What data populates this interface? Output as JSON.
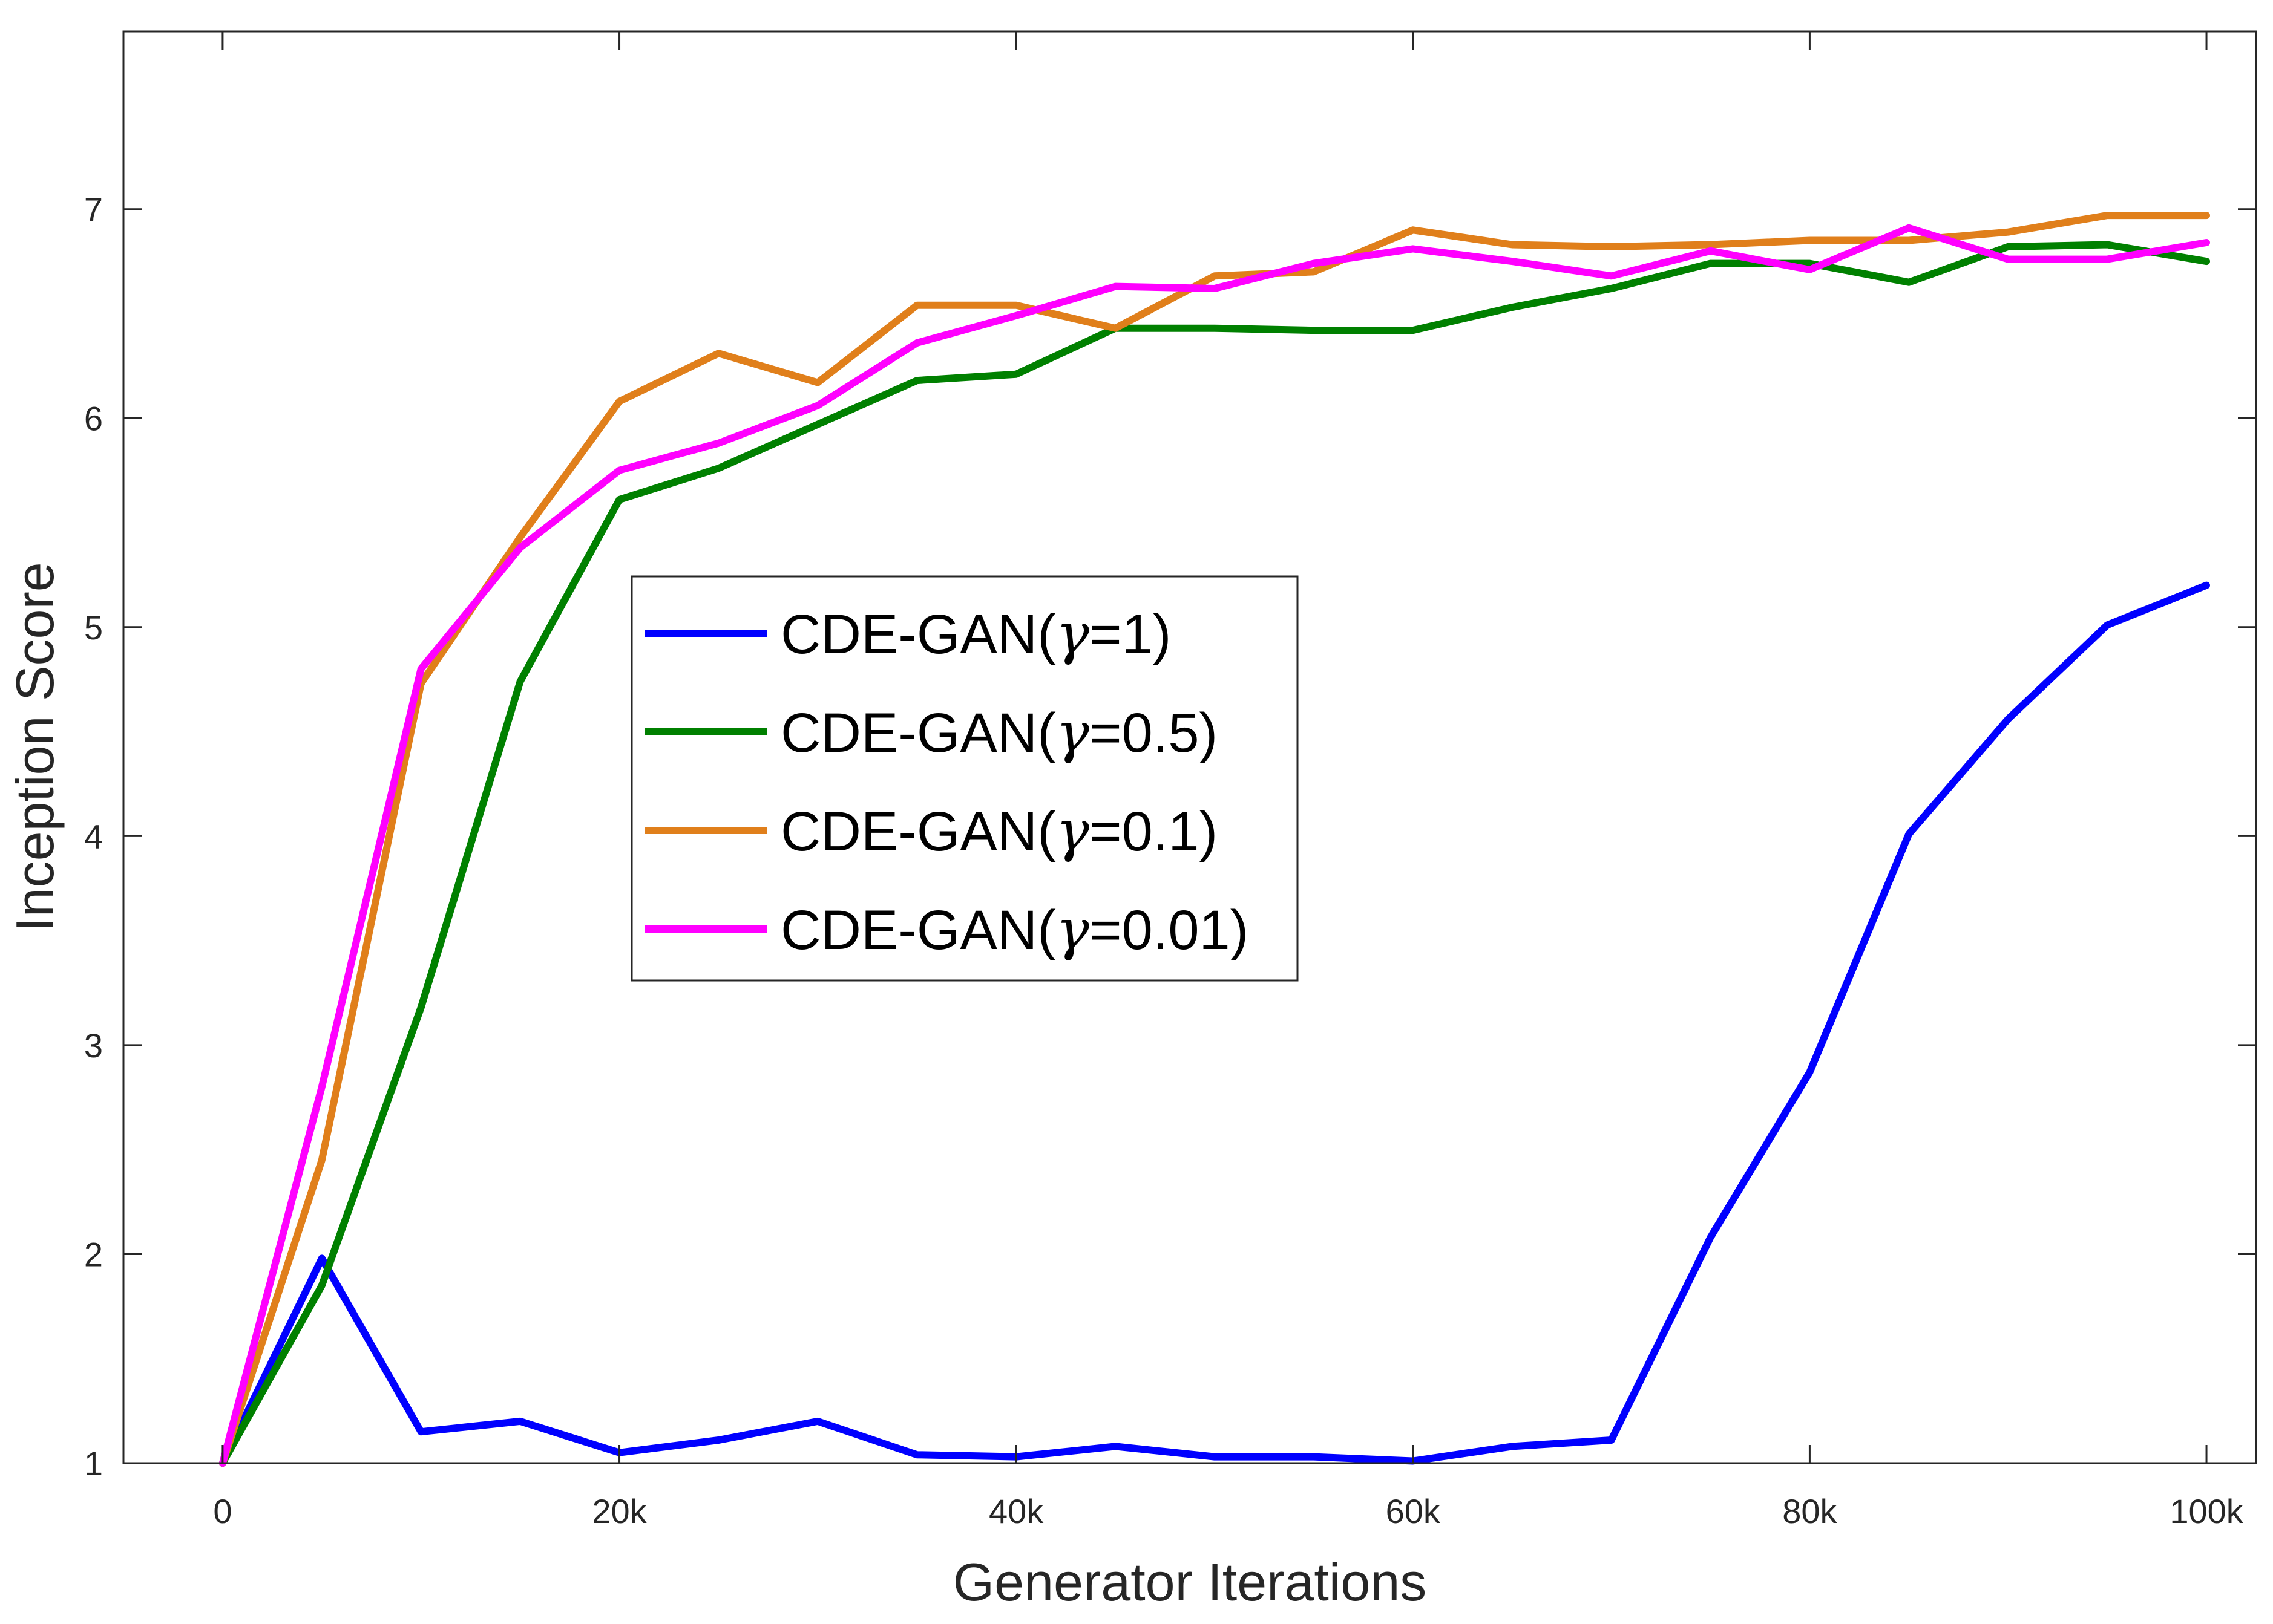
{
  "chart_data": {
    "type": "line",
    "xlabel": "Generator Iterations",
    "ylabel": "Inception Score",
    "xlim": [
      -5000,
      102500
    ],
    "ylim": [
      1,
      7.85
    ],
    "x_ticks": [
      0,
      20000,
      40000,
      60000,
      80000,
      100000
    ],
    "x_tick_labels": [
      "0",
      "20k",
      "40k",
      "60k",
      "80k",
      "100k"
    ],
    "y_ticks": [
      1,
      2,
      3,
      4,
      5,
      6,
      7
    ],
    "y_tick_labels": [
      "1",
      "2",
      "3",
      "4",
      "5",
      "6",
      "7"
    ],
    "grid": false,
    "legend_position": "center",
    "x": [
      0,
      5000,
      10000,
      15000,
      20000,
      25000,
      30000,
      35000,
      40000,
      45000,
      50000,
      55000,
      60000,
      65000,
      70000,
      75000,
      80000,
      85000,
      90000,
      95000,
      100000
    ],
    "series": [
      {
        "name": "CDE-GAN(γ=1)",
        "label_prefix": "CDE-GAN(",
        "label_gamma": "γ",
        "label_suffix": "=1)",
        "color": "#0000ff",
        "values": [
          1.0,
          1.98,
          1.15,
          1.2,
          1.05,
          1.11,
          1.2,
          1.04,
          1.03,
          1.08,
          1.03,
          1.03,
          1.01,
          1.08,
          1.11,
          2.08,
          2.87,
          4.01,
          4.56,
          5.01,
          5.2
        ]
      },
      {
        "name": "CDE-GAN(γ=0.5)",
        "label_prefix": "CDE-GAN(",
        "label_gamma": "γ",
        "label_suffix": "=0.5)",
        "color": "#008000",
        "values": [
          1.0,
          1.85,
          3.18,
          4.74,
          5.61,
          5.76,
          5.97,
          6.18,
          6.21,
          6.43,
          6.43,
          6.42,
          6.42,
          6.53,
          6.62,
          6.74,
          6.74,
          6.65,
          6.82,
          6.83,
          6.75
        ]
      },
      {
        "name": "CDE-GAN(γ=0.1)",
        "label_prefix": "CDE-GAN(",
        "label_gamma": "γ",
        "label_suffix": "=0.1)",
        "color": "#e07f1b",
        "values": [
          1.0,
          2.45,
          4.73,
          5.43,
          6.08,
          6.31,
          6.17,
          6.54,
          6.54,
          6.43,
          6.68,
          6.7,
          6.9,
          6.83,
          6.82,
          6.83,
          6.85,
          6.85,
          6.89,
          6.97,
          6.97
        ]
      },
      {
        "name": "CDE-GAN(γ=0.01)",
        "label_prefix": "CDE-GAN(",
        "label_gamma": "γ",
        "label_suffix": "=0.01)",
        "color": "#ff00ff",
        "values": [
          1.0,
          2.8,
          4.8,
          5.38,
          5.75,
          5.88,
          6.06,
          6.36,
          6.49,
          6.63,
          6.62,
          6.74,
          6.81,
          6.75,
          6.68,
          6.8,
          6.71,
          6.91,
          6.76,
          6.76,
          6.84
        ]
      }
    ]
  }
}
